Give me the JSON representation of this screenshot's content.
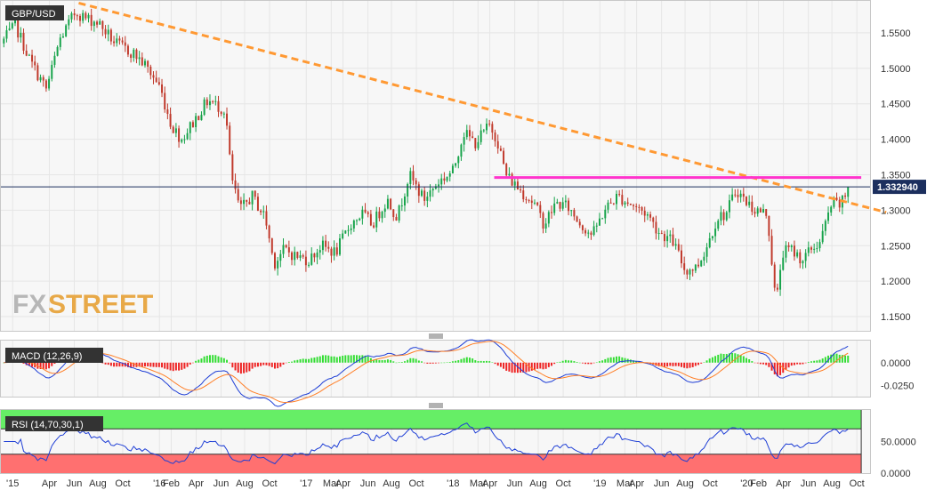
{
  "chart_data": [
    {
      "type": "candlestick",
      "title": "GBP/USD",
      "yticks": [
        "1.5500",
        "1.5000",
        "1.4500",
        "1.4000",
        "1.3500",
        "1.3000",
        "1.2500",
        "1.2000",
        "1.1500"
      ],
      "ylim": [
        1.13,
        1.595
      ],
      "current_price_label": "1.332940",
      "current_price": 1.33294,
      "grid": true,
      "trendline_desc": [
        [
          2015.45,
          1.592
        ],
        [
          2020.95,
          1.297
        ]
      ],
      "resistance_line": [
        [
          2018.28,
          1.346
        ],
        [
          2020.78,
          1.346
        ]
      ],
      "colors": {
        "up": "#16a34a",
        "down": "#c0392b",
        "trendline": "#ff9933",
        "resistance": "#ff33cc",
        "price_line": "#1c2f5e",
        "price_label_bg": "#1c2f5e"
      },
      "candles": []
    },
    {
      "type": "macd",
      "label": "MACD (12,26,9)",
      "yticks": [
        "0.0000",
        "-0.0250"
      ],
      "ylim": [
        -0.037,
        0.024
      ],
      "colors": {
        "macd": "#1f3fd6",
        "signal": "#ff7f27",
        "hist_pos": "#33dd33",
        "hist_neg": "#ee2222"
      }
    },
    {
      "type": "rsi",
      "label": "RSI (14,70,30,1)",
      "yticks": [
        "50.0000",
        "0.0000"
      ],
      "ylim": [
        0,
        100
      ],
      "overbought": 70,
      "oversold": 30,
      "colors": {
        "line": "#1f3fd6",
        "overbought_zone": "#66ee66",
        "oversold_zone": "#ff7070"
      }
    }
  ],
  "xaxis": {
    "ticks": [
      "'15",
      "Apr",
      "Jun",
      "Aug",
      "Oct",
      "'16",
      "Feb",
      "Apr",
      "Jun",
      "Aug",
      "Oct",
      "'17",
      "Mar",
      "Apr",
      "Jun",
      "Aug",
      "Oct",
      "'18",
      "Mar",
      "Apr",
      "Jun",
      "Aug",
      "Oct",
      "'19",
      "Mar",
      "Apr",
      "Jun",
      "Aug",
      "Oct",
      "'20",
      "Feb",
      "Apr",
      "Jun",
      "Aug",
      "Oct"
    ],
    "tick_dates": [
      2015.0,
      2015.25,
      2015.42,
      2015.58,
      2015.75,
      2016.0,
      2016.08,
      2016.25,
      2016.42,
      2016.58,
      2016.75,
      2017.0,
      2017.17,
      2017.25,
      2017.42,
      2017.58,
      2017.75,
      2018.0,
      2018.17,
      2018.25,
      2018.42,
      2018.58,
      2018.75,
      2019.0,
      2019.17,
      2019.25,
      2019.42,
      2019.58,
      2019.75,
      2020.0,
      2020.08,
      2020.25,
      2020.42,
      2020.58,
      2020.75
    ]
  },
  "watermark": {
    "part1": "FX",
    "part2": "STREET"
  }
}
